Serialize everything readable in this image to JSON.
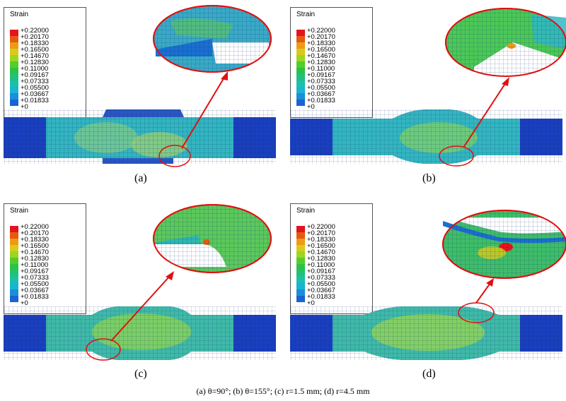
{
  "legend": {
    "title": "Strain",
    "values": [
      "+0.22000",
      "+0.20170",
      "+0.18330",
      "+0.16500",
      "+0.14670",
      "+0.12830",
      "+0.11000",
      "+0.09167",
      "+0.07333",
      "+0.05500",
      "+0.03667",
      "+0.01833",
      "+0"
    ],
    "colors": [
      "#e3141d",
      "#e55a10",
      "#ee9a14",
      "#d9cb1a",
      "#9ed51f",
      "#55cc2a",
      "#2bc247",
      "#1fc17d",
      "#1bc0ad",
      "#1ab3d2",
      "#1a8fd8",
      "#1a63d4",
      "#1a3bc8"
    ]
  },
  "panels": [
    {
      "id": "a",
      "label": "(a)"
    },
    {
      "id": "b",
      "label": "(b)"
    },
    {
      "id": "c",
      "label": "(c)"
    },
    {
      "id": "d",
      "label": "(d)"
    }
  ],
  "caption": "(a) θ=90°; (b) θ=155°; (c) r=1.5 mm; (d) r=4.5 mm",
  "colors": {
    "plate_blue": "#1a3fbf",
    "mesh_cyan": "#33b5c0",
    "mesh_green": "#4cc74a",
    "arrow_red": "#e01010"
  }
}
